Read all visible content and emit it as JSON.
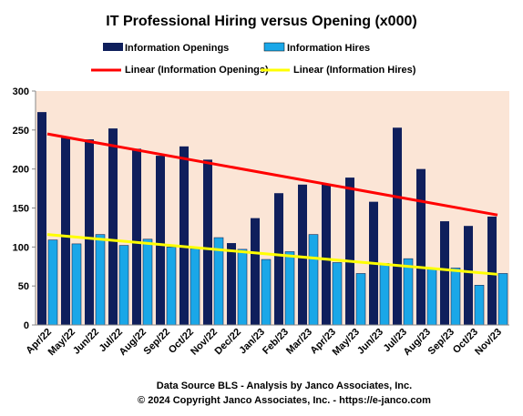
{
  "chart_data": {
    "type": "bar",
    "title": "IT Professional Hiring versus Opening (x000)",
    "categories": [
      "Apr/22",
      "May/22",
      "Jun/22",
      "Jul/22",
      "Aug/22",
      "Sep/22",
      "Oct/22",
      "Nov/22",
      "Dec/22",
      "Jan/23",
      "Feb/23",
      "Mar/23",
      "Apr/23",
      "May/23",
      "Jun/23",
      "Jul/23",
      "Aug/23",
      "Sep/23",
      "Oct/23",
      "Nov/23"
    ],
    "series": [
      {
        "name": "Information Openings",
        "color": "#0f1f5c",
        "values": [
          273,
          240,
          238,
          252,
          226,
          217,
          229,
          212,
          105,
          137,
          169,
          180,
          181,
          189,
          158,
          253,
          200,
          133,
          127,
          139
        ]
      },
      {
        "name": "Information Hires",
        "color": "#1aa7e8",
        "values": [
          109,
          104,
          116,
          102,
          110,
          100,
          98,
          112,
          97,
          84,
          94,
          116,
          80,
          66,
          79,
          85,
          73,
          73,
          51,
          66
        ]
      }
    ],
    "trendlines": [
      {
        "name": "Linear (Information Openings)",
        "color": "#ff0000",
        "start": 245,
        "end": 141
      },
      {
        "name": "Linear (Information Hires)",
        "color": "#ffff00",
        "start": 116,
        "end": 65
      }
    ],
    "ylim": [
      0,
      300
    ],
    "yticks": [
      0,
      50,
      100,
      150,
      200,
      250,
      300
    ],
    "grid": false,
    "legend_position": "top",
    "plot_background": "#fbe5d6",
    "footer": [
      "Data Source BLS - Analysis  by Janco Associates, Inc.",
      "© 2024 Copyright Janco Associates, Inc. - https://e-janco.com"
    ]
  }
}
